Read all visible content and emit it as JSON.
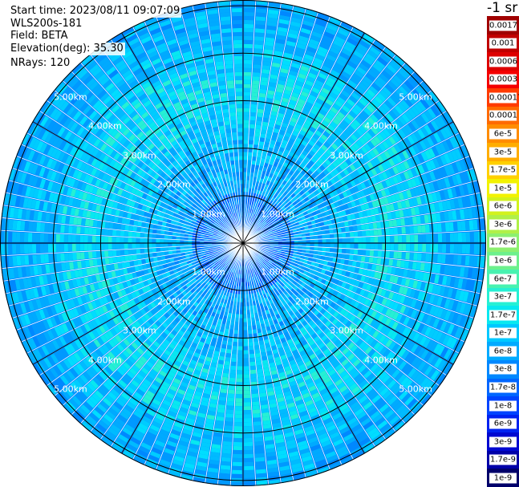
{
  "info": {
    "start_time": "Start time: 2023/08/11 09:07:09",
    "instrument": "WLS200s-181",
    "field": "Field: BETA",
    "elevation": "Elevation(deg): 35.30",
    "nrays": "NRays: 120"
  },
  "map": {
    "rays": 120,
    "ring_distances_km": [
      1,
      2,
      3,
      4,
      5
    ],
    "ring_labels": [
      "1.00km",
      "2.00km",
      "3.00km",
      "4.00km",
      "5.00km"
    ]
  },
  "colorbar": {
    "title": "-1 sr",
    "levels": [
      {
        "label": "0.0017",
        "color": "#a00000"
      },
      {
        "label": "0.001",
        "color": "#c00000"
      },
      {
        "label": "0.0006",
        "color": "#dd0000"
      },
      {
        "label": "0.0003",
        "color": "#f40000"
      },
      {
        "label": "0.00017",
        "color": "#ff3b00"
      },
      {
        "label": "0.0001",
        "color": "#ff6a00"
      },
      {
        "label": "6e-5",
        "color": "#ff8c00"
      },
      {
        "label": "3e-5",
        "color": "#ffad00"
      },
      {
        "label": "1.7e-5",
        "color": "#ffd000"
      },
      {
        "label": "1e-5",
        "color": "#f2f200"
      },
      {
        "label": "6e-6",
        "color": "#d2f21e"
      },
      {
        "label": "3e-6",
        "color": "#b0f048"
      },
      {
        "label": "1.7e-6",
        "color": "#8cf070"
      },
      {
        "label": "1e-6",
        "color": "#6cf08c"
      },
      {
        "label": "6e-7",
        "color": "#48f2b0"
      },
      {
        "label": "3e-7",
        "color": "#26f0d4"
      },
      {
        "label": "1.7e-7",
        "color": "#08e8f0"
      },
      {
        "label": "1e-7",
        "color": "#00c8ff"
      },
      {
        "label": "6e-8",
        "color": "#00aaff"
      },
      {
        "label": "3e-8",
        "color": "#0088ff"
      },
      {
        "label": "1.7e-8",
        "color": "#0066ff"
      },
      {
        "label": "1e-8",
        "color": "#0044ff"
      },
      {
        "label": "6e-9",
        "color": "#0022f0"
      },
      {
        "label": "3e-9",
        "color": "#0008d0"
      },
      {
        "label": "1.7e-9",
        "color": "#0000a8"
      },
      {
        "label": "1e-9",
        "color": "#00006a"
      }
    ]
  }
}
